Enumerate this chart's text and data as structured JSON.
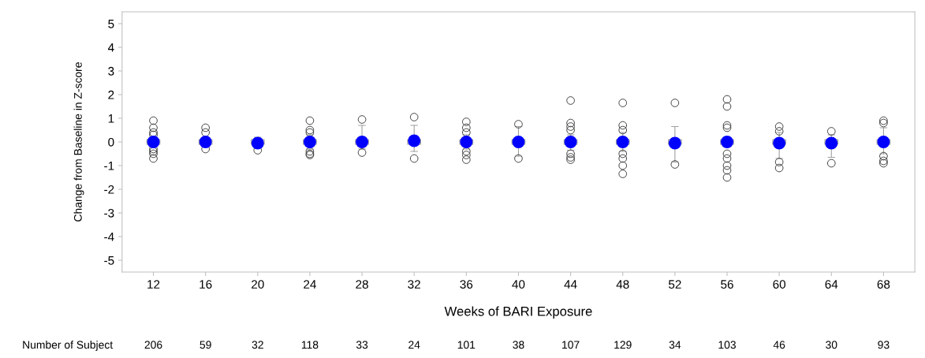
{
  "chart_data": {
    "type": "box",
    "xlabel": "Weeks of BARI Exposure",
    "ylabel": "Change from Baseline in Z-score",
    "categories": [
      "12",
      "16",
      "20",
      "24",
      "28",
      "32",
      "36",
      "40",
      "44",
      "48",
      "52",
      "56",
      "60",
      "64",
      "68"
    ],
    "ylim": [
      -5.5,
      5.5
    ],
    "yticks": [
      -5,
      -4,
      -3,
      -2,
      -1,
      0,
      1,
      2,
      3,
      4,
      5
    ],
    "grid": false,
    "legend": false,
    "series": [
      {
        "color": "#a0a0a0",
        "boxes": [
          {
            "low": -0.2,
            "q1": -0.1,
            "median": 0,
            "q3": 0.1,
            "high": 0.2,
            "outliers": [
              0.9,
              0.6,
              0.4,
              0.3,
              -0.3,
              -0.4,
              -0.5,
              -0.7
            ]
          },
          {
            "low": -0.2,
            "q1": -0.1,
            "median": 0,
            "q3": 0.1,
            "high": 0.2,
            "outliers": [
              0.6,
              0.4,
              -0.3
            ]
          },
          {
            "low": -0.2,
            "q1": -0.1,
            "median": 0,
            "q3": 0.1,
            "high": 0.2,
            "outliers": [
              -0.35
            ]
          },
          {
            "low": -0.3,
            "q1": -0.1,
            "median": 0,
            "q3": 0.1,
            "high": 0.3,
            "outliers": [
              0.9,
              0.5,
              0.4,
              -0.4,
              -0.5,
              -0.55
            ]
          },
          {
            "low": -0.3,
            "q1": -0.1,
            "median": 0,
            "q3": 0.1,
            "high": 0.7,
            "outliers": [
              0.95,
              -0.45
            ]
          },
          {
            "low": -0.4,
            "q1": -0.1,
            "median": 0,
            "q3": 0.1,
            "high": 0.7,
            "outliers": [
              1.05,
              -0.7
            ]
          },
          {
            "low": -0.3,
            "q1": -0.1,
            "median": 0,
            "q3": 0.1,
            "high": 0.3,
            "outliers": [
              0.85,
              0.6,
              0.4,
              -0.4,
              -0.55,
              -0.75
            ]
          },
          {
            "low": -0.6,
            "q1": -0.1,
            "median": 0,
            "q3": 0.1,
            "high": 0.65,
            "outliers": [
              0.75,
              -0.7
            ]
          },
          {
            "low": -0.35,
            "q1": -0.1,
            "median": 0,
            "q3": 0.1,
            "high": 0.3,
            "outliers": [
              1.75,
              0.8,
              0.65,
              0.5,
              -0.5,
              -0.65,
              -0.75
            ]
          },
          {
            "low": -0.4,
            "q1": -0.1,
            "median": 0,
            "q3": 0.1,
            "high": 0.4,
            "outliers": [
              1.65,
              0.7,
              0.5,
              -0.5,
              -0.7,
              -1.0,
              -1.35
            ]
          },
          {
            "low": -0.85,
            "q1": -0.1,
            "median": 0,
            "q3": 0.1,
            "high": 0.65,
            "outliers": [
              1.65,
              -0.95
            ]
          },
          {
            "low": -0.2,
            "q1": -0.1,
            "median": 0,
            "q3": 0.1,
            "high": 0.2,
            "outliers": [
              1.8,
              1.5,
              0.7,
              0.6,
              -0.5,
              -0.7,
              -1.0,
              -1.2,
              -1.5
            ]
          },
          {
            "low": -0.7,
            "q1": -0.1,
            "median": 0,
            "q3": 0.1,
            "high": 0.4,
            "outliers": [
              0.65,
              0.45,
              -0.85,
              -1.1
            ]
          },
          {
            "low": -0.65,
            "q1": -0.1,
            "median": 0,
            "q3": 0.1,
            "high": 0.3,
            "outliers": [
              0.45,
              -0.9
            ]
          },
          {
            "low": -0.5,
            "q1": -0.1,
            "median": 0,
            "q3": 0.1,
            "high": 0.6,
            "outliers": [
              0.9,
              0.8,
              -0.6,
              -0.8,
              -0.9
            ]
          }
        ]
      },
      {
        "type": "scatter",
        "color": "#0000ff",
        "x": [
          "12",
          "16",
          "20",
          "24",
          "28",
          "32",
          "36",
          "40",
          "44",
          "48",
          "52",
          "56",
          "60",
          "64",
          "68"
        ],
        "values": [
          0,
          0,
          -0.05,
          0,
          0,
          0.05,
          0,
          0,
          0,
          0,
          -0.05,
          0,
          -0.05,
          -0.05,
          0
        ]
      }
    ],
    "annotations": [
      "Number of Subject",
      "206",
      "59",
      "32",
      "118",
      "33",
      "24",
      "101",
      "38",
      "107",
      "129",
      "34",
      "103",
      "46",
      "30",
      "93"
    ]
  }
}
